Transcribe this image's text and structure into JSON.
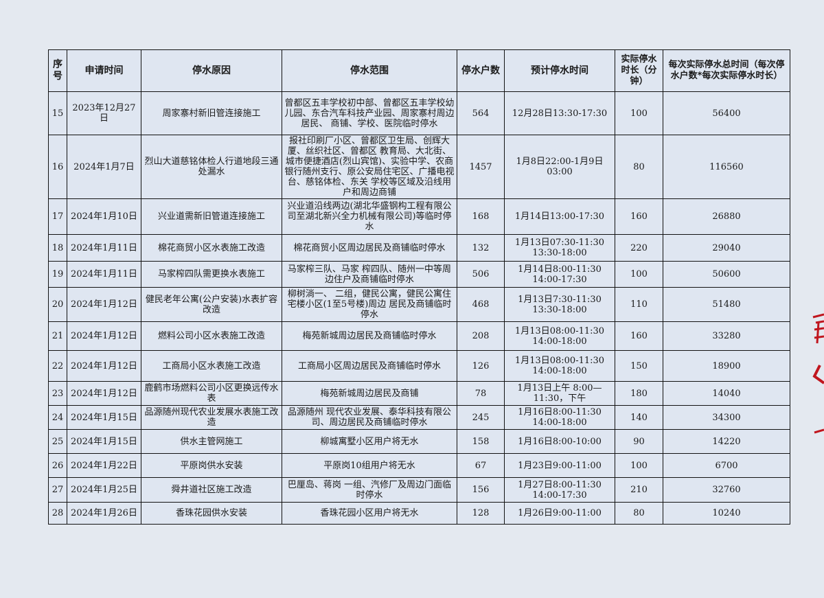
{
  "table": {
    "headers": [
      "序号",
      "申请时间",
      "停水原因",
      "停水范围",
      "停水户数",
      "预计停水时间",
      "实际停水时长（分钟）",
      "每次实际停水总时间（每次停水户数*每次实际停水时长）"
    ],
    "rows": [
      {
        "no": "15",
        "date": "2023年12月27日",
        "reason": "周家寨村新旧管连接施工",
        "scope": "曾都区五丰学校初中部、曾都区五丰学校幼儿园、东合汽车科技产业园、周家寨村周边居民、 商铺、学校、医院临时停水",
        "households": "564",
        "planned": "12月28日13:30-17:30",
        "minutes": "100",
        "total": "56400"
      },
      {
        "no": "16",
        "date": "2024年1月7日",
        "reason": "烈山大道慈铭体检人行道地段三通处漏水",
        "scope": "报社印刷厂小区、曾都区卫生局、创辉大厦、丝织社区、曾都区 教育局、大北街、城市便捷酒店(烈山宾馆)、实验中学、农商 银行随州支行、原公安局住宅区、广播电视台、慈铭体检、东关 学校等区域及沿线用户和周边商铺",
        "households": "1457",
        "planned": "1月8日22:00-1月9日03:00",
        "minutes": "80",
        "total": "116560"
      },
      {
        "no": "17",
        "date": "2024年1月10日",
        "reason": "兴业道需新旧管道连接施工",
        "scope": "兴业道沿线两边(湖北华盛钢构工程有限公司至湖北新兴全力机械有限公司)等临时停水",
        "households": "168",
        "planned": "1月14日13:00-17:30",
        "minutes": "160",
        "total": "26880"
      },
      {
        "no": "18",
        "date": "2024年1月11日",
        "reason": "棉花商贸小区水表施工改造",
        "scope": "棉花商贸小区周边居民及商铺临时停水",
        "households": "132",
        "planned": "1月13日07:30-11:30 13:30-18:00",
        "minutes": "220",
        "total": "29040"
      },
      {
        "no": "19",
        "date": "2024年1月11日",
        "reason": "马家榨四队需更换水表施工",
        "scope": "马家榨三队、马家 榨四队、随州一中等周边住户及商铺临时停水",
        "households": "506",
        "planned": "1月14日8:00-11:30 14:00-17:30",
        "minutes": "100",
        "total": "50600"
      },
      {
        "no": "20",
        "date": "2024年1月12日",
        "reason": "健民老年公寓(公户安装)水表扩容改造",
        "scope": "柳树淌一、 二组，健民公寓，健民公寓住宅楼小区(1至5号楼)周边 居民及商铺临时停水",
        "households": "468",
        "planned": "1月13日7:30-11:30 13:30-18:00",
        "minutes": "110",
        "total": "51480"
      },
      {
        "no": "21",
        "date": "2024年1月12日",
        "reason": "燃料公司小区水表施工改造",
        "scope": "梅苑新城周边居民及商铺临时停水",
        "households": "208",
        "planned": "1月13日08:00-11:30 14:00-18:00",
        "minutes": "160",
        "total": "33280"
      },
      {
        "no": "22",
        "date": "2024年1月12日",
        "reason": "工商局小区水表施工改造",
        "scope": "工商局小区周边居民及商铺临时停水",
        "households": "126",
        "planned": "1月13日08:00-11:30 14:00-18:00",
        "minutes": "150",
        "total": "18900"
      },
      {
        "no": "23",
        "date": "2024年1月12日",
        "reason": "鹿鹤市场燃料公司小区更换远传水表",
        "scope": "梅苑新城周边居民及商铺",
        "households": "78",
        "planned": "1月13日上午 8:00—11:30，下午",
        "minutes": "180",
        "total": "14040",
        "bold": true
      },
      {
        "no": "24",
        "date": "2024年1月15日",
        "reason": "品源随州现代农业发展水表施工改造",
        "scope": "品源随州 现代农业发展、泰华科技有限公司、周边居民及商铺临时停水",
        "households": "245",
        "planned": "1月16日8:00-11:30 14:00-18:00",
        "minutes": "140",
        "total": "34300"
      },
      {
        "no": "25",
        "date": "2024年1月15日",
        "reason": "供水主管网施工",
        "scope": "柳城寓墅小区用户将无水",
        "households": "158",
        "planned": "1月16日8:00-10:00",
        "minutes": "90",
        "total": "14220"
      },
      {
        "no": "26",
        "date": "2024年1月22日",
        "reason": "平原岗供水安装",
        "scope": "平原岗10组用户将无水",
        "households": "67",
        "planned": "1月23日9:00-11:00",
        "minutes": "100",
        "total": "6700"
      },
      {
        "no": "27",
        "date": "2024年1月25日",
        "reason": "舜井道社区施工改造",
        "scope": "巴厘岛、蒋岗 一组、汽修厂及周边门面临时停水",
        "households": "156",
        "planned": "1月27日8:00-11:30 14:00-17:30",
        "minutes": "210",
        "total": "32760"
      },
      {
        "no": "28",
        "date": "2024年1月26日",
        "reason": "香珠花园供水安装",
        "scope": "香珠花园小区用户将无水",
        "households": "128",
        "planned": "1月26日9:00-11:00",
        "minutes": "80",
        "total": "10240"
      }
    ]
  },
  "colors": {
    "ink": "#111111",
    "paper": "#e4e9f0",
    "seal": "#c0161e"
  }
}
